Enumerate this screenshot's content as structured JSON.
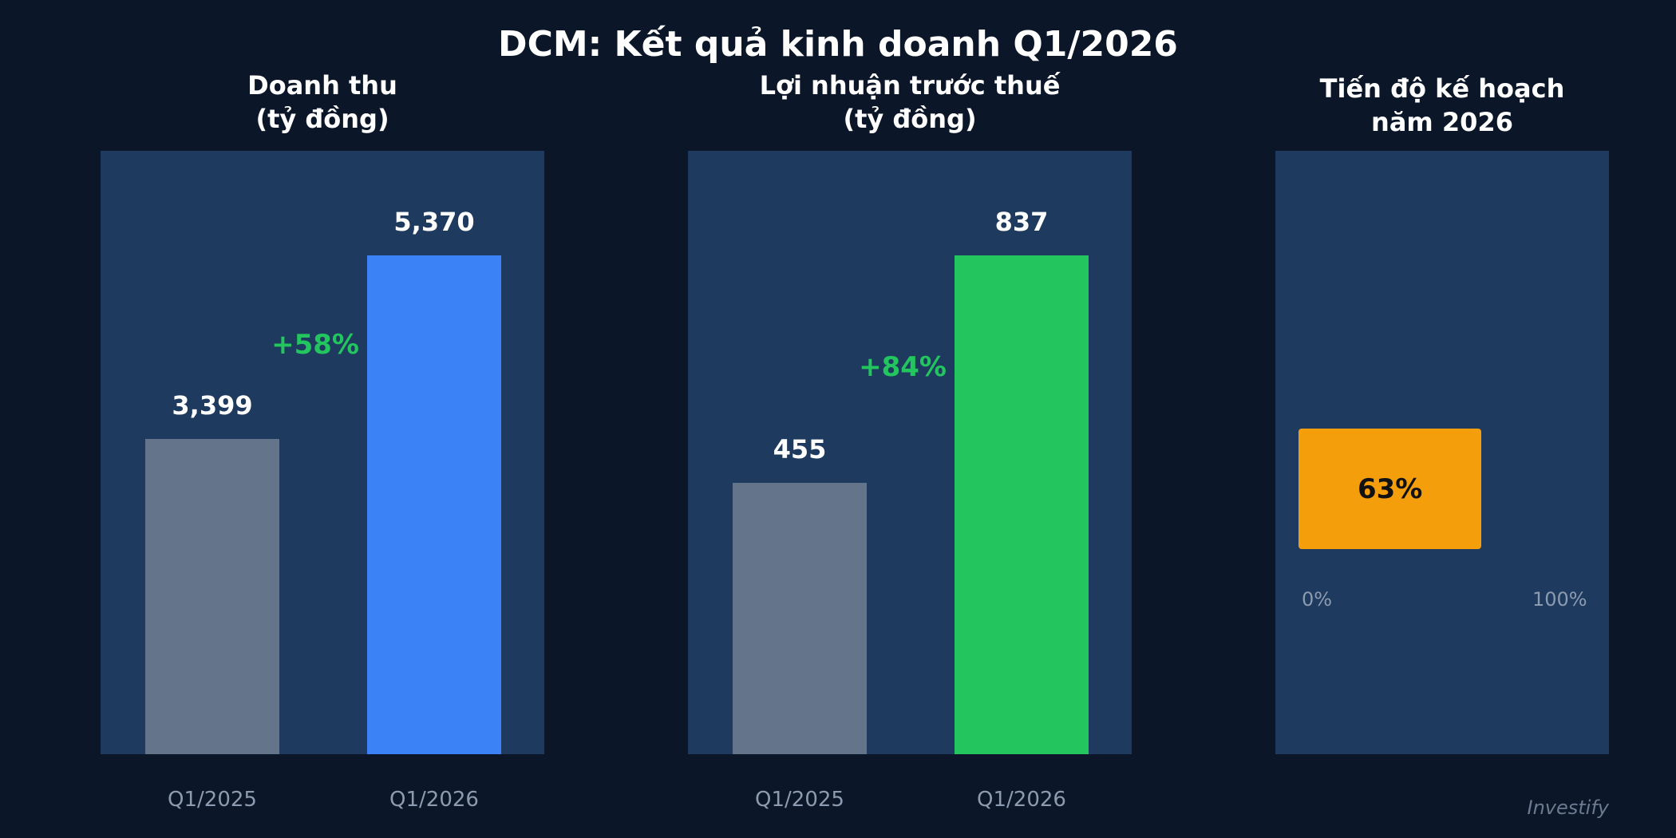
{
  "title": "DCM: Kết quả kinh doanh Q1/2026",
  "watermark": "Investify",
  "colors": {
    "background": "#0b1628",
    "panel": "#1e3a5f",
    "previous": "#64748b",
    "revenue": "#3b82f6",
    "profit": "#22c55e",
    "growth": "#22c55e",
    "progress": "#f59e0b"
  },
  "chart_data": [
    {
      "type": "bar",
      "title": [
        "Doanh thu",
        "(tỷ đồng)"
      ],
      "categories": [
        "Q1/2025",
        "Q1/2026"
      ],
      "values": [
        3399,
        5370
      ],
      "value_labels": [
        "3,399",
        "5,370"
      ],
      "growth_label": "+58%",
      "ylim": [
        0,
        6500
      ]
    },
    {
      "type": "bar",
      "title": [
        "Lợi nhuận trước thuế",
        "(tỷ đồng)"
      ],
      "categories": [
        "Q1/2025",
        "Q1/2026"
      ],
      "values": [
        455,
        837
      ],
      "value_labels": [
        "455",
        "837"
      ],
      "growth_label": "+84%",
      "ylim": [
        0,
        1013
      ]
    },
    {
      "type": "bar",
      "orientation": "horizontal",
      "title": [
        "Tiến độ kế hoạch",
        "năm 2026"
      ],
      "value": 63,
      "value_label": "63%",
      "range_labels": [
        "0%",
        "100%"
      ],
      "xlim": [
        0,
        100
      ]
    }
  ]
}
